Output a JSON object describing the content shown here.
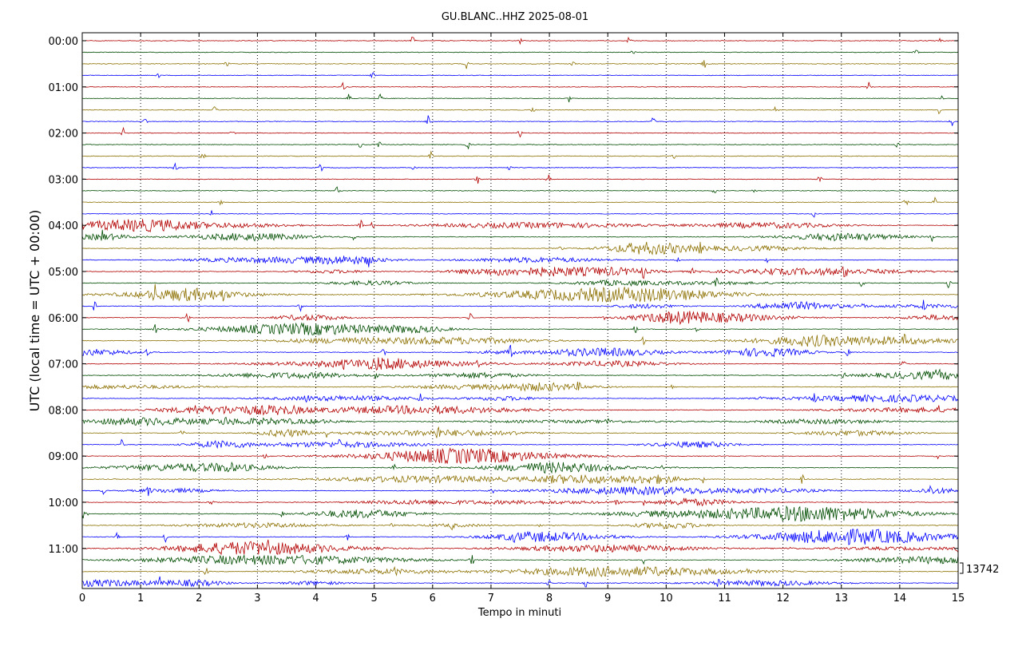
{
  "chart_data": {
    "type": "line",
    "title": "GU.BLANC..HHZ 2025-08-01",
    "xlabel": "Tempo in minuti",
    "ylabel": "UTC (local time = UTC + 00:00)",
    "xlim": [
      0,
      15
    ],
    "x_ticks": [
      "0",
      "1",
      "2",
      "3",
      "4",
      "5",
      "6",
      "7",
      "8",
      "9",
      "10",
      "11",
      "12",
      "13",
      "14",
      "15"
    ],
    "y_ticks": [
      "00:00",
      "01:00",
      "02:00",
      "03:00",
      "04:00",
      "05:00",
      "06:00",
      "07:00",
      "08:00",
      "09:00",
      "10:00",
      "11:00"
    ],
    "trace_count": 48,
    "trace_colors": [
      "#b30000",
      "#004d00",
      "#8c7000",
      "#0000ff"
    ],
    "grid": "vertical-dotted",
    "scale_label": "13742"
  }
}
